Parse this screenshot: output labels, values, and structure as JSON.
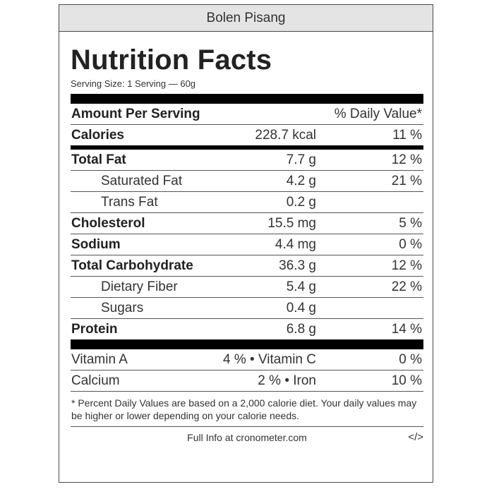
{
  "food_name": "Bolen Pisang",
  "title": "Nutrition Facts",
  "serving_size": "Serving Size: 1 Serving — 60g",
  "header": {
    "amount_label": "Amount Per Serving",
    "dv_label": "% Daily Value*"
  },
  "calories": {
    "name": "Calories",
    "amount": "228.7 kcal",
    "dv": "11 %"
  },
  "nutrients": [
    {
      "name": "Total Fat",
      "amount": "7.7 g",
      "dv": "12 %"
    },
    {
      "name": "Saturated Fat",
      "amount": "4.2 g",
      "dv": "21 %"
    },
    {
      "name": "Trans Fat",
      "amount": "0.2 g",
      "dv": ""
    },
    {
      "name": "Cholesterol",
      "amount": "15.5 mg",
      "dv": "5 %"
    },
    {
      "name": "Sodium",
      "amount": "4.4 mg",
      "dv": "0 %"
    },
    {
      "name": "Total Carbohydrate",
      "amount": "36.3 g",
      "dv": "12 %"
    },
    {
      "name": "Dietary Fiber",
      "amount": "5.4 g",
      "dv": "22 %"
    },
    {
      "name": "Sugars",
      "amount": "0.4 g",
      "dv": ""
    },
    {
      "name": "Protein",
      "amount": "6.8 g",
      "dv": "14 %"
    }
  ],
  "vitamins": [
    {
      "left": "Vitamin A",
      "middle": "4 % • Vitamin C",
      "right": "0 %"
    },
    {
      "left": "Calcium",
      "middle": "2 % • Iron",
      "right": "10 %"
    }
  ],
  "footnote": "* Percent Daily Values are based on a 2,000 calorie diet. Your daily values may be higher or lower depending on your calorie needs.",
  "footer": {
    "info": "Full Info at cronometer.com",
    "embed": "</>"
  }
}
